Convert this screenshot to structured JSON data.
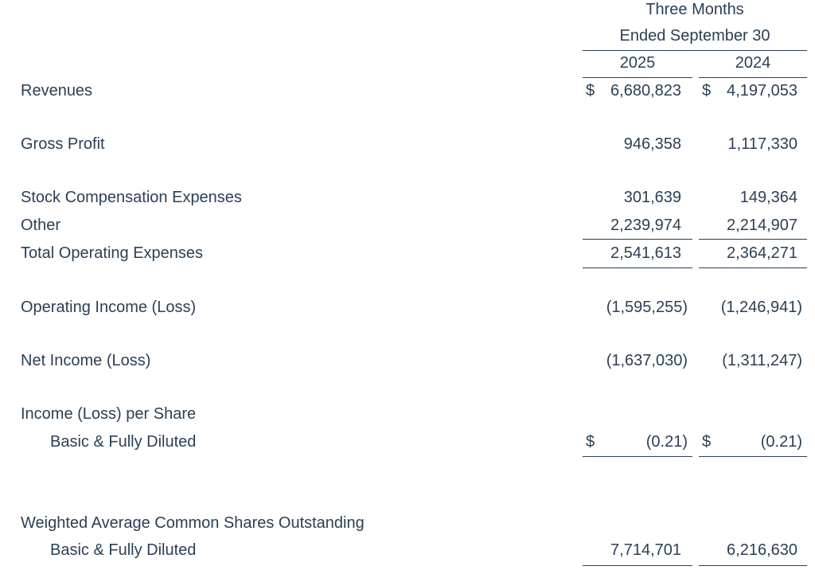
{
  "header": {
    "period_line1": "Three Months",
    "period_line2": "Ended September 30",
    "year_current": "2025",
    "year_prior": "2024"
  },
  "rows": {
    "revenues": {
      "label": "Revenues",
      "cur_symbol": "$",
      "cur": "6,680,823",
      "prior_symbol": "$",
      "prior": "4,197,053"
    },
    "gross_profit": {
      "label": "Gross Profit",
      "cur": "946,358",
      "prior": "1,117,330"
    },
    "stock_comp": {
      "label": "Stock Compensation Expenses",
      "cur": "301,639",
      "prior": "149,364"
    },
    "other": {
      "label": "Other",
      "cur": "2,239,974",
      "prior": "2,214,907"
    },
    "total_opex": {
      "label": "Total Operating Expenses",
      "cur": "2,541,613",
      "prior": "2,364,271"
    },
    "operating_income": {
      "label": "Operating Income (Loss)",
      "cur": "(1,595,255)",
      "prior": "(1,246,941)"
    },
    "net_income": {
      "label": "Net Income (Loss)",
      "cur": "(1,637,030)",
      "prior": "(1,311,247)"
    },
    "income_per_share": {
      "label": "Income (Loss) per Share"
    },
    "eps_basic": {
      "label": "Basic & Fully Diluted",
      "cur_symbol": "$",
      "cur": "(0.21)",
      "prior_symbol": "$",
      "prior": "(0.21)"
    },
    "weighted_shares": {
      "label": "Weighted Average Common Shares Outstanding"
    },
    "shares_basic": {
      "label": "Basic & Fully Diluted",
      "cur": "7,714,701",
      "prior": "6,216,630"
    }
  }
}
